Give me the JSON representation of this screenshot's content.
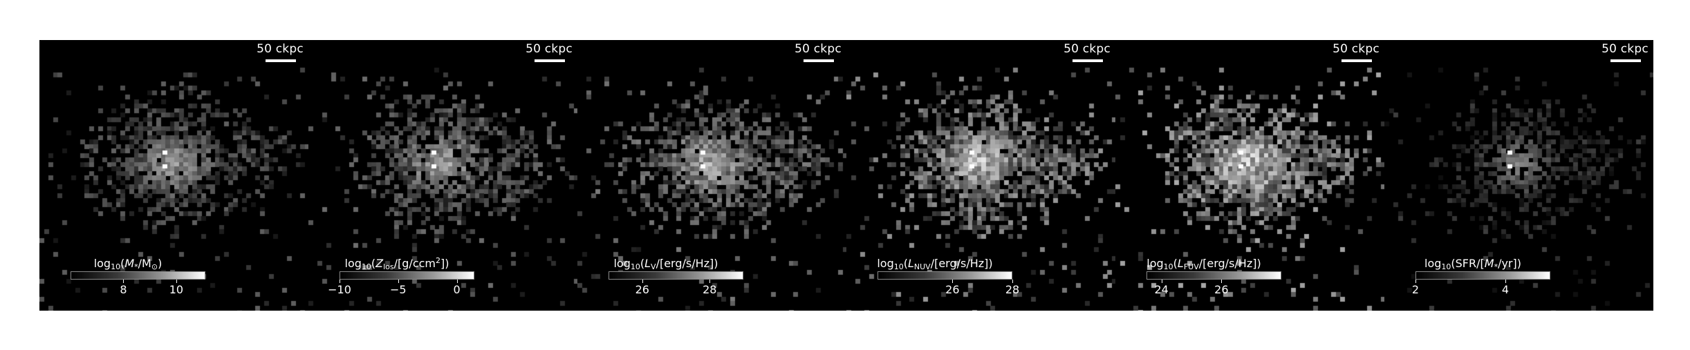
{
  "figure": {
    "panels": [
      {
        "scale_label": "50 ckpc",
        "cbar_pre": "log",
        "cbar_sub": "10",
        "cbar_open": "(",
        "cbar_q": "M",
        "cbar_q_sub": "*",
        "cbar_mid": "/M",
        "cbar_mid_sub": "⊙",
        "cbar_close": ")",
        "cbar_sup": "",
        "range": [
          6.0,
          11.1
        ],
        "ticks": [
          {
            "value": 8,
            "label": "8"
          },
          {
            "value": 10,
            "label": "10"
          }
        ],
        "brightness": 0.55
      },
      {
        "scale_label": "50 ckpc",
        "cbar_pre": "log",
        "cbar_sub": "10",
        "cbar_open": "(",
        "cbar_q": "Z",
        "cbar_q_sub": "los",
        "cbar_mid": "/[g/ccm",
        "cbar_mid_sub": "",
        "cbar_close": "])",
        "cbar_sup": "2",
        "range": [
          -10.0,
          1.5
        ],
        "ticks": [
          {
            "value": -10,
            "label": "−10"
          },
          {
            "value": -5,
            "label": "−5"
          },
          {
            "value": 0,
            "label": "0"
          }
        ],
        "brightness": 0.62
      },
      {
        "scale_label": "50 ckpc",
        "cbar_pre": "log",
        "cbar_sub": "10",
        "cbar_open": "(",
        "cbar_q": "L",
        "cbar_q_sub": "V",
        "cbar_mid": "/[erg/s/Hz])",
        "cbar_mid_sub": "",
        "cbar_close": "",
        "cbar_sup": "",
        "range": [
          25.0,
          29.0
        ],
        "ticks": [
          {
            "value": 26,
            "label": "26"
          },
          {
            "value": 28,
            "label": "28"
          }
        ],
        "brightness": 0.7
      },
      {
        "scale_label": "50 ckpc",
        "cbar_pre": "log",
        "cbar_sub": "10",
        "cbar_open": "(",
        "cbar_q": "L",
        "cbar_q_sub": "NUV",
        "cbar_mid": "/[erg/s/Hz])",
        "cbar_mid_sub": "",
        "cbar_close": "",
        "cbar_sup": "",
        "range": [
          23.5,
          28.0
        ],
        "ticks": [
          {
            "value": 26,
            "label": "26"
          },
          {
            "value": 28,
            "label": "28"
          }
        ],
        "brightness": 0.85
      },
      {
        "scale_label": "50 ckpc",
        "cbar_pre": "log",
        "cbar_sub": "10",
        "cbar_open": "(",
        "cbar_q": "L",
        "cbar_q_sub": "FUV",
        "cbar_mid": "/[erg/s/Hz])",
        "cbar_mid_sub": "",
        "cbar_close": "",
        "cbar_sup": "",
        "range": [
          23.5,
          28.0
        ],
        "ticks": [
          {
            "value": 24,
            "label": "24"
          },
          {
            "value": 26,
            "label": "26"
          }
        ],
        "brightness": 0.95
      },
      {
        "scale_label": "50 ckpc",
        "cbar_pre": "log",
        "cbar_sub": "10",
        "cbar_open": "(SFR/[",
        "cbar_q": "M",
        "cbar_q_sub": "*",
        "cbar_mid": "/yr])",
        "cbar_mid_sub": "",
        "cbar_close": "",
        "cbar_sup": "",
        "range": [
          2.0,
          5.0
        ],
        "ticks": [
          {
            "value": 2,
            "label": "2"
          },
          {
            "value": 4,
            "label": "4"
          }
        ],
        "brightness": 0.35
      }
    ]
  }
}
